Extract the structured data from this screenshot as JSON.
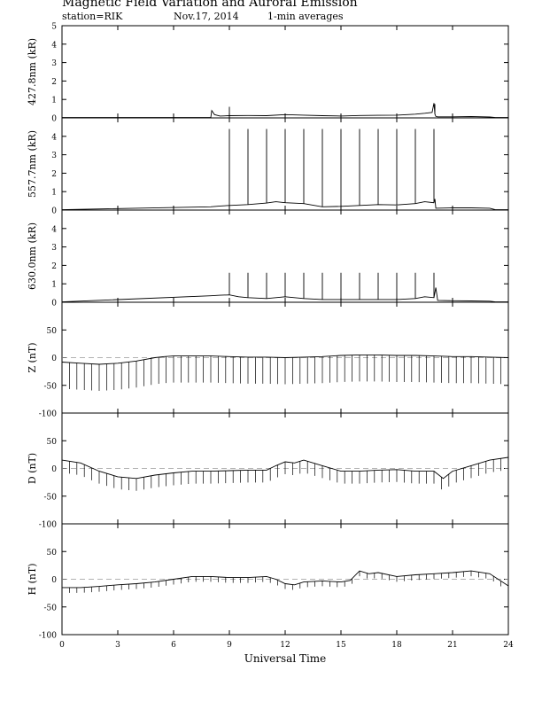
{
  "header": {
    "title": "Magnetic Field Variation and Auroral Emission",
    "station": "station=RIK",
    "date": "Nov.17, 2014",
    "averaging": "1-min averages"
  },
  "chart_data": [
    {
      "type": "line",
      "ylabel": "427.8nm (kR)",
      "ylim": [
        0,
        5
      ],
      "yticks": [
        "0",
        "1",
        "2",
        "3",
        "4",
        "5"
      ],
      "baseline": 0,
      "series": [
        {
          "x": [
            0,
            8,
            8.05,
            8.2,
            8.5,
            9,
            10,
            11,
            12,
            13,
            14,
            15,
            16,
            17,
            18,
            19,
            19.5,
            19.9,
            20.0,
            20.05,
            20.1,
            20.2,
            21,
            22,
            23,
            23.3,
            24
          ],
          "values": [
            0.02,
            0.02,
            0.4,
            0.18,
            0.1,
            0.12,
            0.13,
            0.12,
            0.18,
            0.15,
            0.12,
            0.1,
            0.13,
            0.14,
            0.15,
            0.2,
            0.25,
            0.3,
            0.8,
            0.2,
            0.08,
            0.06,
            0.06,
            0.07,
            0.05,
            0.02,
            0.02
          ]
        }
      ],
      "spikes": [
        {
          "x": 9,
          "to": 0.6
        },
        {
          "x": 20.05,
          "to": 0.75
        }
      ]
    },
    {
      "type": "line",
      "ylabel": "557.7nm (kR)",
      "ylim": [
        0,
        5
      ],
      "yticks": [
        "0",
        "1",
        "2",
        "3",
        "4"
      ],
      "baseline": 0,
      "series": [
        {
          "x": [
            0,
            8,
            8.5,
            9,
            10,
            11,
            11.5,
            12,
            13,
            14,
            15,
            16,
            17,
            18,
            19,
            19.5,
            20,
            20.05,
            20.1,
            21,
            22,
            23,
            23.3,
            24
          ],
          "values": [
            0.02,
            0.18,
            0.22,
            0.25,
            0.3,
            0.38,
            0.45,
            0.4,
            0.35,
            0.18,
            0.2,
            0.25,
            0.3,
            0.28,
            0.35,
            0.45,
            0.4,
            0.6,
            0.1,
            0.12,
            0.12,
            0.1,
            0.02,
            0.02
          ]
        }
      ],
      "spikes": [
        {
          "x": 9,
          "to": 4.4
        },
        {
          "x": 10,
          "to": 4.4
        },
        {
          "x": 11,
          "to": 4.4
        },
        {
          "x": 12,
          "to": 4.4
        },
        {
          "x": 13,
          "to": 4.4
        },
        {
          "x": 14,
          "to": 4.4
        },
        {
          "x": 15,
          "to": 4.4
        },
        {
          "x": 16,
          "to": 4.4
        },
        {
          "x": 17,
          "to": 4.4
        },
        {
          "x": 18,
          "to": 4.4
        },
        {
          "x": 19,
          "to": 4.4
        },
        {
          "x": 20,
          "to": 4.4
        }
      ]
    },
    {
      "type": "line",
      "ylabel": "630.0nm (kR)",
      "ylim": [
        0,
        5
      ],
      "yticks": [
        "0",
        "1",
        "2",
        "3",
        "4"
      ],
      "baseline": 0,
      "series": [
        {
          "x": [
            0,
            8,
            8.5,
            9,
            9.5,
            10,
            11,
            11.5,
            12,
            13,
            14,
            15,
            16,
            17,
            18,
            19,
            19.5,
            20,
            20.1,
            20.2,
            21,
            22,
            23,
            23.3,
            24
          ],
          "values": [
            0.02,
            0.35,
            0.38,
            0.4,
            0.3,
            0.25,
            0.2,
            0.25,
            0.3,
            0.2,
            0.15,
            0.15,
            0.15,
            0.15,
            0.15,
            0.2,
            0.3,
            0.25,
            0.8,
            0.1,
            0.08,
            0.07,
            0.06,
            0.02,
            0.02
          ]
        }
      ],
      "spikes": [
        {
          "x": 9,
          "to": 1.6
        },
        {
          "x": 10,
          "to": 1.6
        },
        {
          "x": 11,
          "to": 1.6
        },
        {
          "x": 12,
          "to": 1.6
        },
        {
          "x": 13,
          "to": 1.6
        },
        {
          "x": 14,
          "to": 1.6
        },
        {
          "x": 15,
          "to": 1.6
        },
        {
          "x": 16,
          "to": 1.6
        },
        {
          "x": 17,
          "to": 1.6
        },
        {
          "x": 18,
          "to": 1.6
        },
        {
          "x": 19,
          "to": 1.6
        },
        {
          "x": 20,
          "to": 1.6
        }
      ]
    },
    {
      "type": "line",
      "ylabel": "Z (nT)",
      "ylim": [
        -100,
        100
      ],
      "yticks": [
        "-100",
        "-50",
        "0",
        "50"
      ],
      "baseline": 0,
      "series": [
        {
          "x": [
            0,
            1,
            2,
            3,
            4,
            5,
            5.5,
            6,
            7,
            8,
            9,
            10,
            11,
            12,
            13,
            14,
            15,
            16,
            17,
            18,
            19,
            20,
            21,
            22,
            23,
            24
          ],
          "values": [
            -8,
            -10,
            -12,
            -10,
            -6,
            0,
            2,
            3,
            3,
            3,
            2,
            1,
            1,
            0,
            1,
            2,
            4,
            5,
            5,
            4,
            4,
            3,
            2,
            2,
            1,
            0
          ]
        }
      ],
      "spikes_step": 0.4,
      "spike_len": 30
    },
    {
      "type": "line",
      "ylabel": "D (nT)",
      "ylim": [
        -100,
        100
      ],
      "yticks": [
        "-100",
        "-50",
        "0",
        "50"
      ],
      "baseline": 0,
      "series": [
        {
          "x": [
            0,
            1,
            2,
            3,
            4,
            5,
            6,
            7,
            8,
            9,
            10,
            11,
            11.5,
            12,
            12.5,
            13,
            14,
            15,
            16,
            17,
            18,
            19,
            20,
            20.5,
            21,
            22,
            23,
            24
          ],
          "values": [
            15,
            10,
            -5,
            -15,
            -18,
            -12,
            -8,
            -5,
            -5,
            -4,
            -3,
            -3,
            5,
            12,
            10,
            15,
            5,
            -5,
            -5,
            -3,
            -2,
            -5,
            -5,
            -18,
            -5,
            5,
            15,
            20
          ]
        }
      ],
      "spikes_step": 0.4,
      "spike_len": 14
    },
    {
      "type": "line",
      "ylabel": "H (nT)",
      "ylim": [
        -100,
        100
      ],
      "yticks": [
        "-100",
        "-50",
        "0",
        "50"
      ],
      "baseline": 0,
      "series": [
        {
          "x": [
            0,
            1,
            2,
            3,
            4,
            5,
            6,
            7,
            8,
            9,
            10,
            11,
            11.5,
            12,
            12.5,
            13,
            14,
            15,
            15.5,
            16,
            16.5,
            17,
            18,
            19,
            20,
            21,
            22,
            23,
            24
          ],
          "values": [
            -15,
            -15,
            -13,
            -10,
            -8,
            -5,
            0,
            5,
            5,
            3,
            3,
            5,
            0,
            -8,
            -10,
            -5,
            -3,
            -5,
            -2,
            15,
            10,
            12,
            5,
            8,
            10,
            12,
            15,
            10,
            -12
          ]
        }
      ],
      "spikes_step": 0.4,
      "spike_len": 6
    }
  ],
  "xaxis": {
    "label": "Universal Time",
    "range": [
      0,
      24
    ],
    "ticks": [
      0,
      3,
      6,
      9,
      12,
      15,
      18,
      21,
      24
    ],
    "ticklabels": [
      "0",
      "3",
      "6",
      "9",
      "12",
      "15",
      "18",
      "21",
      "24"
    ]
  }
}
